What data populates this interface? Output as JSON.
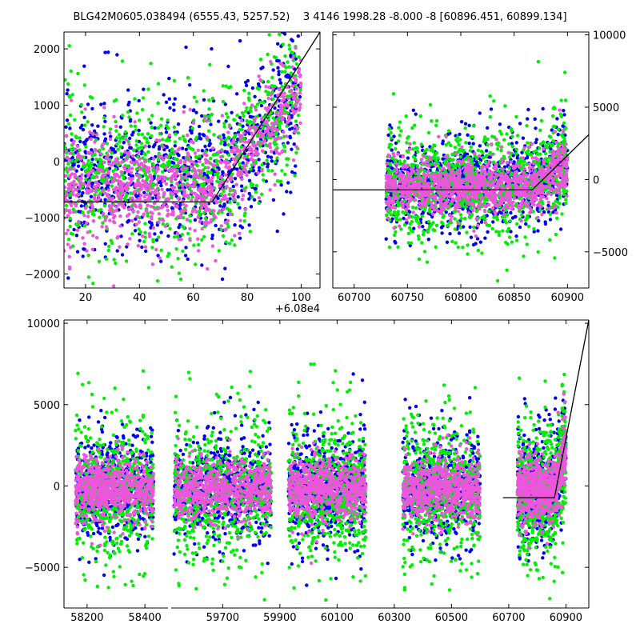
{
  "title": "BLG42M0605.038494 (6555.43, 5257.52)    3 4146 1998.28 -8.000 -8 [60896.451, 60899.134]",
  "colors": {
    "blue": "#0000ee",
    "green": "#00ee00",
    "magenta": "#ee55dd",
    "model": "#000000"
  },
  "chart_data": [
    {
      "id": "top-left",
      "type": "scatter",
      "title": "",
      "xlim": [
        12,
        107
      ],
      "ylim": [
        -2250,
        2300
      ],
      "x_offset_label": "+6.08e4",
      "x_ticks": [
        20,
        40,
        60,
        80,
        100
      ],
      "x_tick_labels": [
        "20",
        "40",
        "60",
        "80",
        "100"
      ],
      "y_ticks": [
        -2000,
        -1000,
        0,
        1000,
        2000
      ],
      "y_tick_labels": [
        "−2000",
        "−1000",
        "0",
        "1000",
        "2000"
      ],
      "y_axis_side": "left",
      "series": [
        {
          "name": "blue",
          "color": "blue",
          "center": -200,
          "spread": 650
        },
        {
          "name": "green",
          "color": "green",
          "center": -250,
          "spread": 700
        },
        {
          "name": "magenta",
          "color": "magenta",
          "center": -600,
          "spread": 450
        }
      ],
      "data_x_range": [
        12,
        100
      ],
      "model_line": {
        "x": [
          12,
          67,
          107
        ],
        "y": [
          -720,
          -720,
          2300
        ]
      }
    },
    {
      "id": "top-right",
      "type": "scatter",
      "title": "",
      "xlim": [
        60680,
        60920
      ],
      "ylim": [
        -7500,
        10200
      ],
      "x_ticks": [
        60700,
        60750,
        60800,
        60850,
        60900
      ],
      "x_tick_labels": [
        "60700",
        "60750",
        "60800",
        "60850",
        "60900"
      ],
      "y_ticks": [
        -5000,
        0,
        5000,
        10000
      ],
      "y_tick_labels": [
        "−5000",
        "0",
        "5000",
        "10000"
      ],
      "y_axis_side": "right",
      "series": [
        {
          "name": "blue",
          "color": "blue",
          "center": -300,
          "spread": 1400
        },
        {
          "name": "green",
          "color": "green",
          "center": -300,
          "spread": 1800
        },
        {
          "name": "magenta",
          "color": "magenta",
          "center": -700,
          "spread": 900
        }
      ],
      "data_x_range": [
        60730,
        60900
      ],
      "model_line": {
        "x": [
          60680,
          60867,
          60920
        ],
        "y": [
          -720,
          -720,
          3100
        ]
      }
    },
    {
      "id": "bottom",
      "type": "scatter",
      "title": "",
      "broken_axis": true,
      "segments": [
        {
          "xlim": [
            58120,
            58480
          ],
          "ticks": [
            58200,
            58400
          ],
          "tick_labels": [
            "58200",
            "58400"
          ],
          "data_x_range": [
            58160,
            58430
          ]
        },
        {
          "xlim": [
            59520,
            60980
          ],
          "ticks": [
            59700,
            59900,
            60100,
            60300,
            60500,
            60700,
            60900
          ],
          "tick_labels": [
            "59700",
            "59900",
            "60100",
            "60300",
            "60500",
            "60700",
            "60900"
          ],
          "data_x_ranges": [
            [
              59530,
              59870
            ],
            [
              59930,
              60200
            ],
            [
              60330,
              60600
            ],
            [
              60730,
              60900
            ]
          ]
        }
      ],
      "ylim": [
        -7500,
        10200
      ],
      "y_ticks": [
        -5000,
        0,
        5000,
        10000
      ],
      "y_tick_labels": [
        "−5000",
        "0",
        "5000",
        "10000"
      ],
      "y_axis_side": "left",
      "series": [
        {
          "name": "blue",
          "color": "blue",
          "center": -100,
          "spread": 1500
        },
        {
          "name": "green",
          "color": "green",
          "center": -300,
          "spread": 2000
        },
        {
          "name": "magenta",
          "color": "magenta",
          "center": -200,
          "spread": 900
        }
      ],
      "model_line": {
        "x": [
          60680,
          60860,
          60980
        ],
        "y": [
          -720,
          -720,
          10200
        ]
      }
    }
  ]
}
